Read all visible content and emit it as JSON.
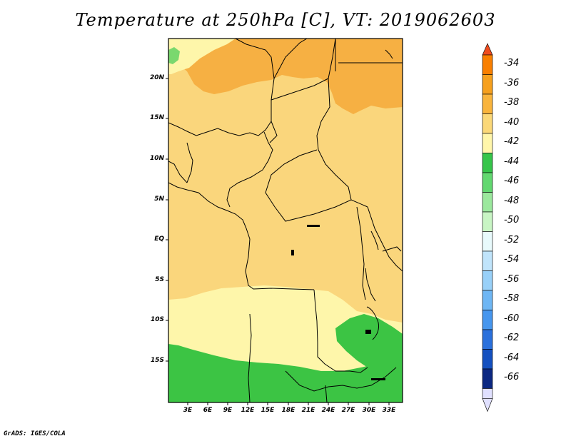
{
  "title": "Temperature at 250hPa [C], VT: 2019062603",
  "credit": "GrADS: IGES/COLA",
  "map": {
    "lat_labels": [
      "20N",
      "15N",
      "10N",
      "5N",
      "EQ",
      "5S",
      "10S",
      "15S"
    ],
    "lon_labels": [
      "3E",
      "6E",
      "9E",
      "12E",
      "15E",
      "18E",
      "21E",
      "24E",
      "27E",
      "30E",
      "33E"
    ]
  },
  "colorbar": {
    "levels": [
      "-34",
      "-36",
      "-38",
      "-40",
      "-42",
      "-44",
      "-46",
      "-48",
      "-50",
      "-52",
      "-54",
      "-56",
      "-58",
      "-60",
      "-62",
      "-64",
      "-66"
    ],
    "colors": [
      "#ee4c1e",
      "#f97f00",
      "#f6a01e",
      "#f9b43c",
      "#fbd878",
      "#fff6aa",
      "#36c54a",
      "#62d870",
      "#9be89d",
      "#c8f5c4",
      "#e8fafc",
      "#c0e4fb",
      "#98d0f8",
      "#6eb6f4",
      "#4696ee",
      "#2a70dc",
      "#1450c0",
      "#0c2882",
      "#e0e0ff"
    ],
    "top_cap_color": "#ee4c1e",
    "bottom_cap_color": "#e0e0ff"
  },
  "fill_colors": {
    "warm_orange": "#f6b043",
    "base_yellow": "#fad67c",
    "light_yellow": "#fef6aa",
    "green": "#3cc444",
    "light_green": "#7ad86e"
  }
}
